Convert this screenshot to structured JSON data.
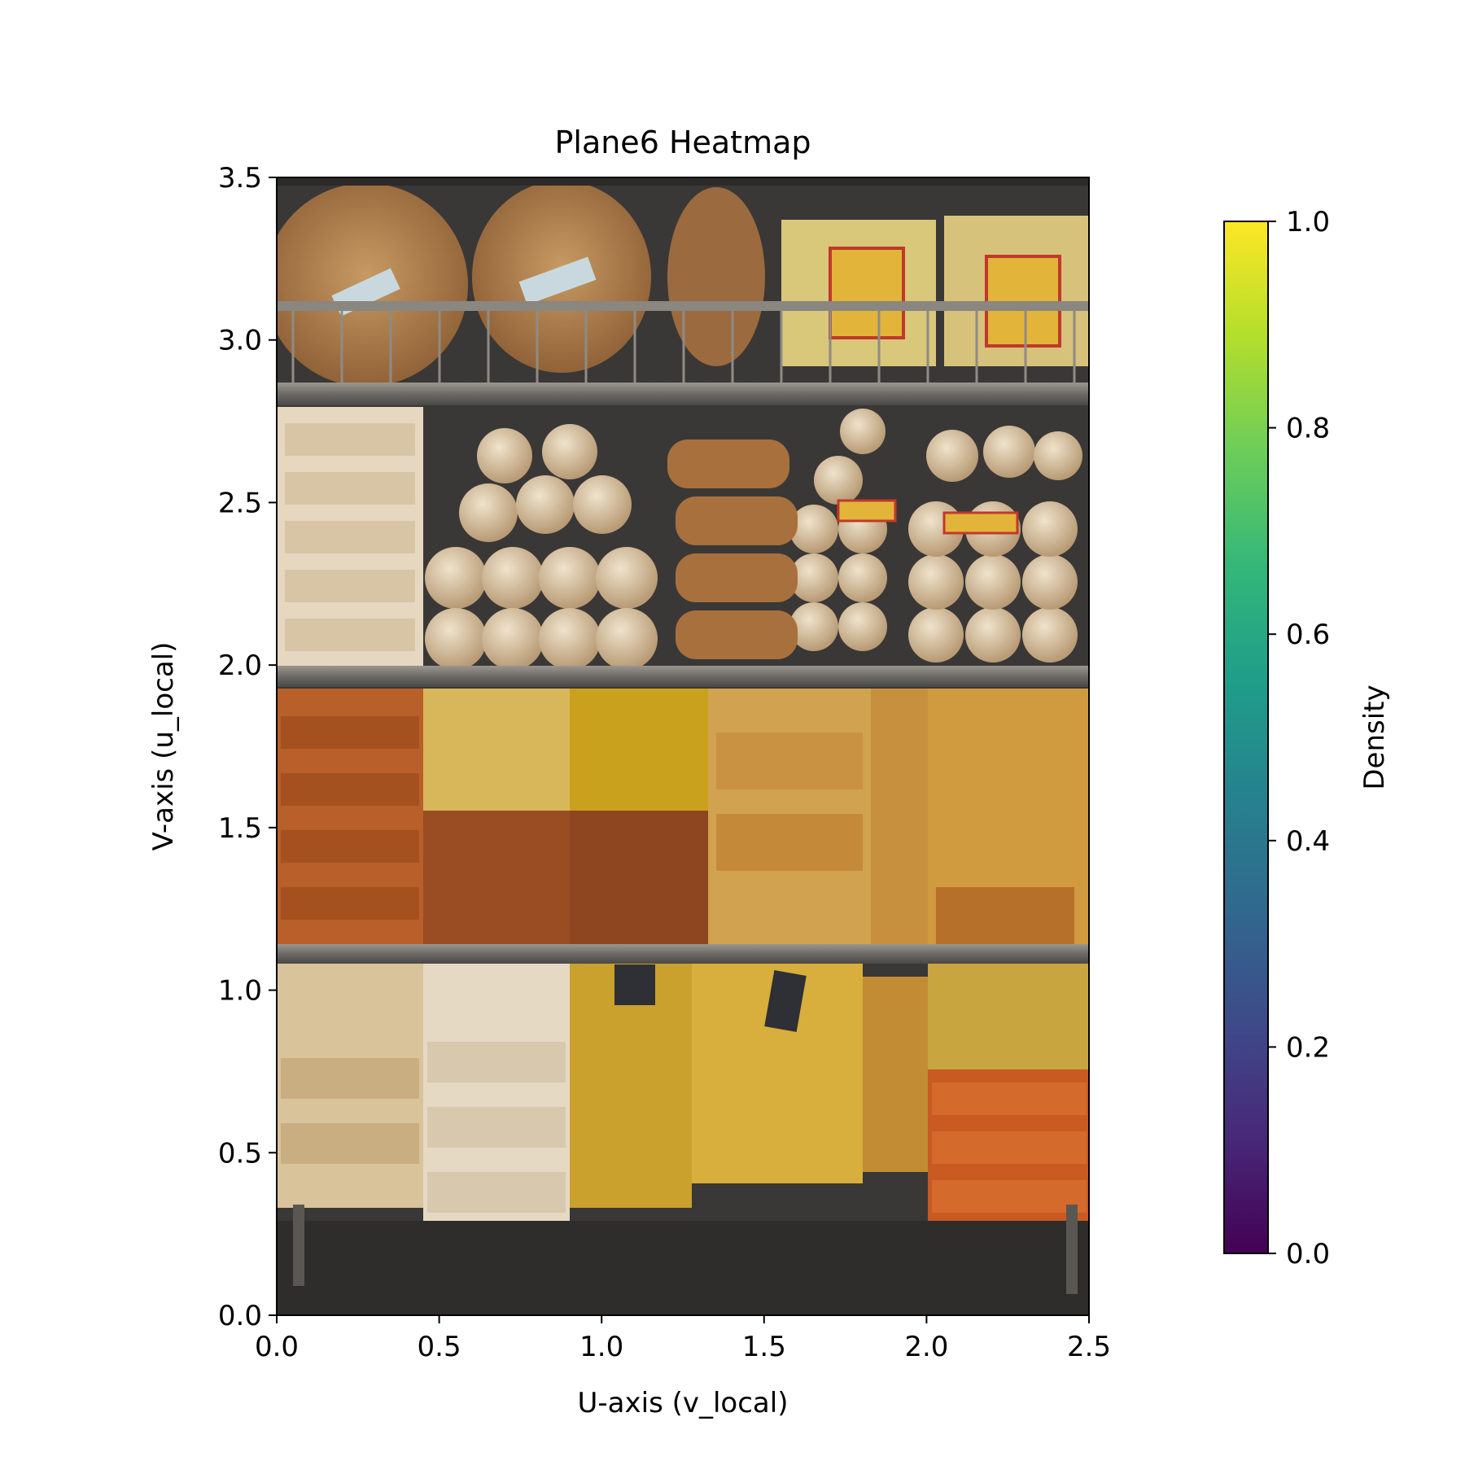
{
  "chart_data": {
    "type": "heatmap",
    "title": "Plane6 Heatmap",
    "xlabel": "U-axis (v_local)",
    "ylabel": "V-axis (u_local)",
    "xlim": [
      0.0,
      2.5
    ],
    "ylim": [
      0.0,
      3.5
    ],
    "x_ticks": [
      "0.0",
      "0.5",
      "1.0",
      "1.5",
      "2.0",
      "2.5"
    ],
    "y_ticks": [
      "0.0",
      "0.5",
      "1.0",
      "1.5",
      "2.0",
      "2.5",
      "3.0",
      "3.5"
    ],
    "colorbar": {
      "label": "Density",
      "colormap": "viridis",
      "range": [
        0.0,
        1.0
      ],
      "ticks": [
        "0.0",
        "0.2",
        "0.4",
        "0.6",
        "0.8",
        "1.0"
      ]
    },
    "grid": false
  },
  "colors": {
    "viridis": [
      "#440154",
      "#482878",
      "#3e4a89",
      "#31688e",
      "#26828e",
      "#1f9e89",
      "#35b779",
      "#6dcd59",
      "#b4de2c",
      "#fde725"
    ]
  }
}
